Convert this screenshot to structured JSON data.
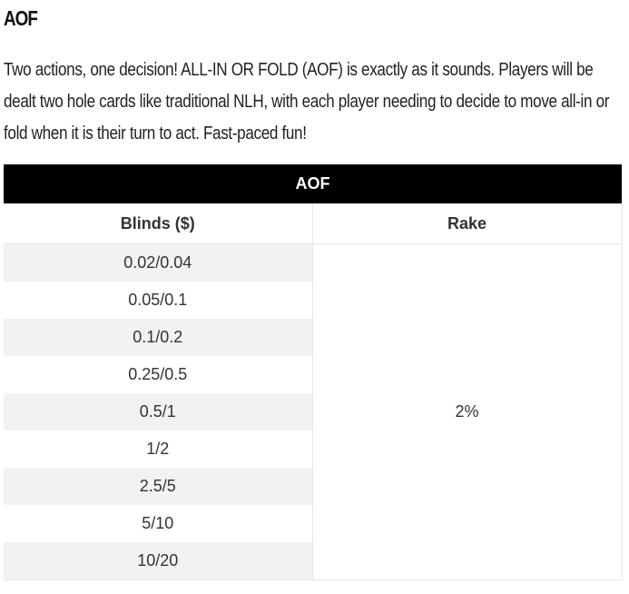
{
  "heading": "AOF",
  "intro": "Two actions, one decision! ALL-IN OR FOLD (AOF) is exactly as it sounds. Players will be dealt two hole cards like traditional NLH, with each player needing to decide to move all-in or fold when it is their turn to act. Fast-paced fun!",
  "table": {
    "title": "AOF",
    "columns": [
      "Blinds ($)",
      "Rake"
    ],
    "blinds": [
      "0.02/0.04",
      "0.05/0.1",
      "0.1/0.2",
      "0.25/0.5",
      "0.5/1",
      "1/2",
      "2.5/5",
      "5/10",
      "10/20"
    ],
    "rake": "2%"
  },
  "colors": {
    "table_header_bg": "#000000",
    "table_header_text": "#ffffff",
    "stripe": "#f2f2f2",
    "border": "#e6e6e6"
  }
}
